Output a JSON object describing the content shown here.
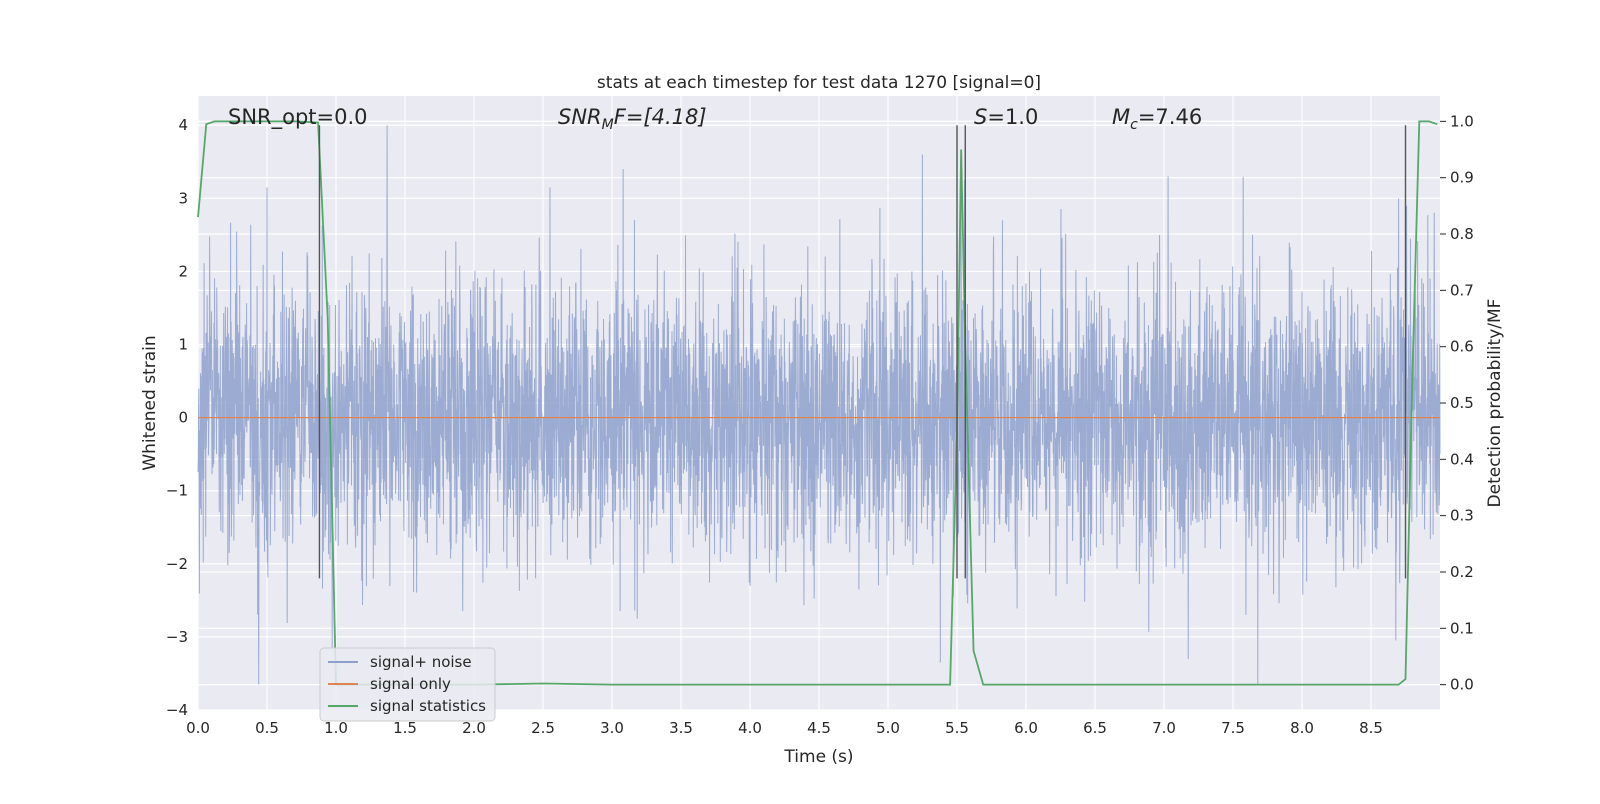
{
  "chart_data": {
    "type": "line",
    "title": "stats at each timestep for test data 1270 [signal=0]",
    "xlabel": "Time (s)",
    "ylabel": "Whitened strain",
    "y2label": "Detection probability/MF",
    "xlim": [
      0.0,
      9.0
    ],
    "ylim": [
      -4.0,
      4.4
    ],
    "y2lim": [
      -0.045,
      1.045
    ],
    "x_ticks": [
      0.0,
      0.5,
      1.0,
      1.5,
      2.0,
      2.5,
      3.0,
      3.5,
      4.0,
      4.5,
      5.0,
      5.5,
      6.0,
      6.5,
      7.0,
      7.5,
      8.0,
      8.5
    ],
    "x_tick_labels": [
      "0.0",
      "0.5",
      "1.0",
      "1.5",
      "2.0",
      "2.5",
      "3.0",
      "3.5",
      "4.0",
      "4.5",
      "5.0",
      "5.5",
      "6.0",
      "6.5",
      "7.0",
      "7.5",
      "8.0",
      "8.5"
    ],
    "y_ticks": [
      -4,
      -3,
      -2,
      -1,
      0,
      1,
      2,
      3,
      4
    ],
    "y_tick_labels": [
      "−4",
      "−3",
      "−2",
      "−1",
      "0",
      "1",
      "2",
      "3",
      "4"
    ],
    "y2_ticks": [
      0.0,
      0.1,
      0.2,
      0.3,
      0.4,
      0.5,
      0.6,
      0.7,
      0.8,
      0.9,
      1.0
    ],
    "y2_tick_labels": [
      "0.0",
      "0.1",
      "0.2",
      "0.3",
      "0.4",
      "0.5",
      "0.6",
      "0.7",
      "0.8",
      "0.9",
      "1.0"
    ],
    "grid": true,
    "legend_position": "bottom-left",
    "annotations": {
      "snr_opt": "SNR_opt=0.0",
      "snr_mf_base": "SNR",
      "snr_mf_sub": "M",
      "snr_mf_rest": "F=[4.18]",
      "s_base": "S",
      "s_rest": "=1.0",
      "mc_base": "M",
      "mc_sub": "c",
      "mc_rest": "=7.46"
    },
    "vertical_lines_x": [
      0.88,
      5.5,
      5.56,
      8.75
    ],
    "series": [
      {
        "name": "signal+ noise",
        "color": "#8da0cb",
        "axis": "left",
        "noise_std": 0.95,
        "x_range": [
          0.0,
          9.0
        ],
        "notable_peaks": [
          {
            "x": 0.44,
            "y": -3.65
          },
          {
            "x": 0.5,
            "y": 3.15
          },
          {
            "x": 1.37,
            "y": 4.0
          },
          {
            "x": 2.55,
            "y": 3.15
          },
          {
            "x": 3.08,
            "y": 3.4
          },
          {
            "x": 5.25,
            "y": 3.6
          },
          {
            "x": 5.38,
            "y": -3.35
          },
          {
            "x": 5.53,
            "y": 3.25
          },
          {
            "x": 7.03,
            "y": 3.3
          },
          {
            "x": 7.68,
            "y": -3.65
          },
          {
            "x": 8.7,
            "y": 3.0
          },
          {
            "x": 8.68,
            "y": -3.05
          }
        ]
      },
      {
        "name": "signal only",
        "color": "#dd8452",
        "axis": "left",
        "x": [
          0.0,
          9.0
        ],
        "y": [
          0.0,
          0.0
        ]
      },
      {
        "name": "signal statistics",
        "color": "#55a868",
        "axis": "right",
        "x": [
          0.0,
          0.06,
          0.12,
          0.3,
          0.5,
          0.7,
          0.87,
          0.94,
          1.0,
          1.5,
          2.0,
          2.5,
          3.0,
          3.5,
          4.0,
          4.5,
          5.0,
          5.45,
          5.5,
          5.53,
          5.56,
          5.62,
          5.69,
          6.0,
          7.0,
          8.0,
          8.7,
          8.75,
          8.8,
          8.85,
          8.92,
          8.98
        ],
        "y": [
          0.83,
          0.995,
          1.0,
          1.0,
          1.0,
          1.0,
          0.998,
          0.65,
          0.0,
          0.0,
          0.0,
          0.002,
          0.0,
          0.0,
          0.0,
          0.0,
          0.0,
          0.0,
          0.45,
          0.95,
          0.6,
          0.06,
          0.0,
          0.0,
          0.0,
          0.0,
          0.0,
          0.01,
          0.55,
          1.0,
          1.0,
          0.995
        ]
      }
    ],
    "legend": [
      {
        "label": "signal+ noise",
        "color": "#8da0cb"
      },
      {
        "label": "signal only",
        "color": "#dd8452"
      },
      {
        "label": "signal statistics",
        "color": "#55a868"
      }
    ],
    "colors": {
      "plot_background": "#eaeaf2",
      "grid": "#ffffff",
      "vertical_line": "#555555"
    }
  }
}
